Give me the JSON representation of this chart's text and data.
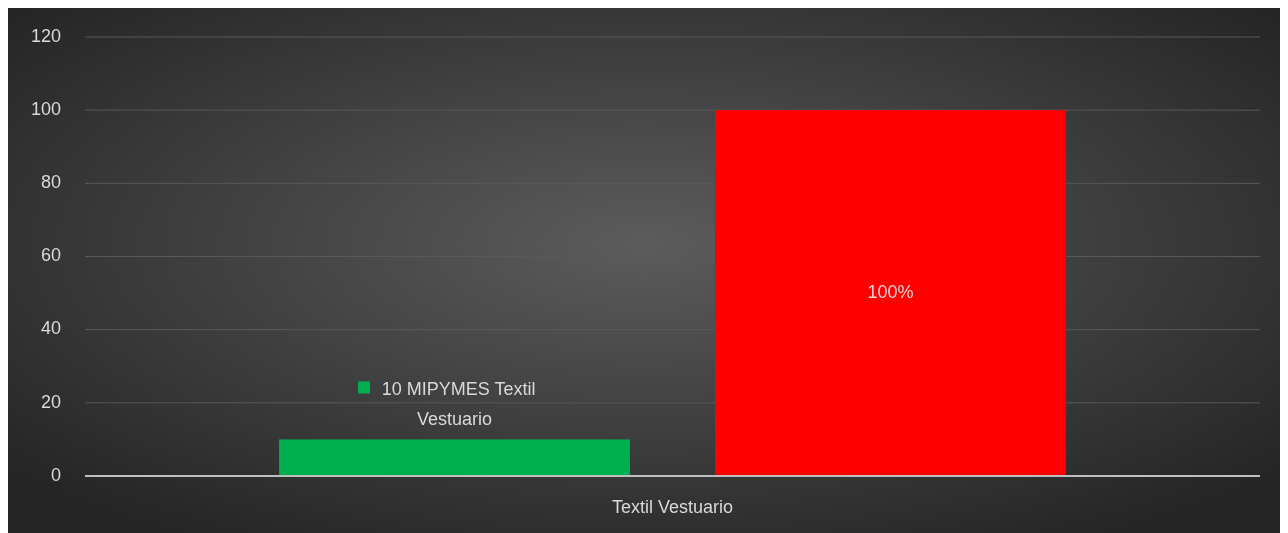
{
  "chart_data": {
    "type": "bar",
    "categories": [
      "Textil Vestuario"
    ],
    "series": [
      {
        "name": "MIPYMES Textil Vestuario",
        "color": "#00b050",
        "values": [
          10
        ],
        "value_labels": [
          "10"
        ]
      },
      {
        "color": "#ff0000",
        "values": [
          100
        ],
        "value_labels": [
          "100%"
        ]
      }
    ],
    "ylim": [
      0,
      120
    ],
    "yticks": [
      0,
      20,
      40,
      60,
      80,
      100,
      120
    ],
    "grid": "y"
  }
}
